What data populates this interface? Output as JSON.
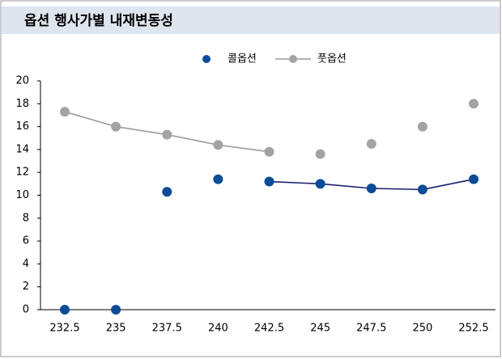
{
  "chart_data": {
    "type": "line",
    "title": "옵션 행사가별 내재변동성",
    "categories": [
      "232.5",
      "235",
      "237.5",
      "240",
      "242.5",
      "245",
      "247.5",
      "250",
      "252.5"
    ],
    "series": [
      {
        "name": "콜옵션",
        "color": "#0b4c97",
        "line_color": "#1b1f6e",
        "line_range": [
          4,
          8
        ],
        "values": [
          0,
          0,
          10.3,
          11.4,
          11.2,
          11.0,
          10.6,
          10.5,
          11.4
        ]
      },
      {
        "name": "풋옵션",
        "color": "#a3a3a3",
        "line_color": "#9a9a9a",
        "line_range": [
          0,
          4
        ],
        "values": [
          17.3,
          16.0,
          15.3,
          14.4,
          13.8,
          13.6,
          14.5,
          16.0,
          18.0
        ]
      }
    ],
    "ylim": [
      0,
      20
    ],
    "yticks": [
      0,
      2,
      4,
      6,
      8,
      10,
      12,
      14,
      16,
      18,
      20
    ]
  }
}
